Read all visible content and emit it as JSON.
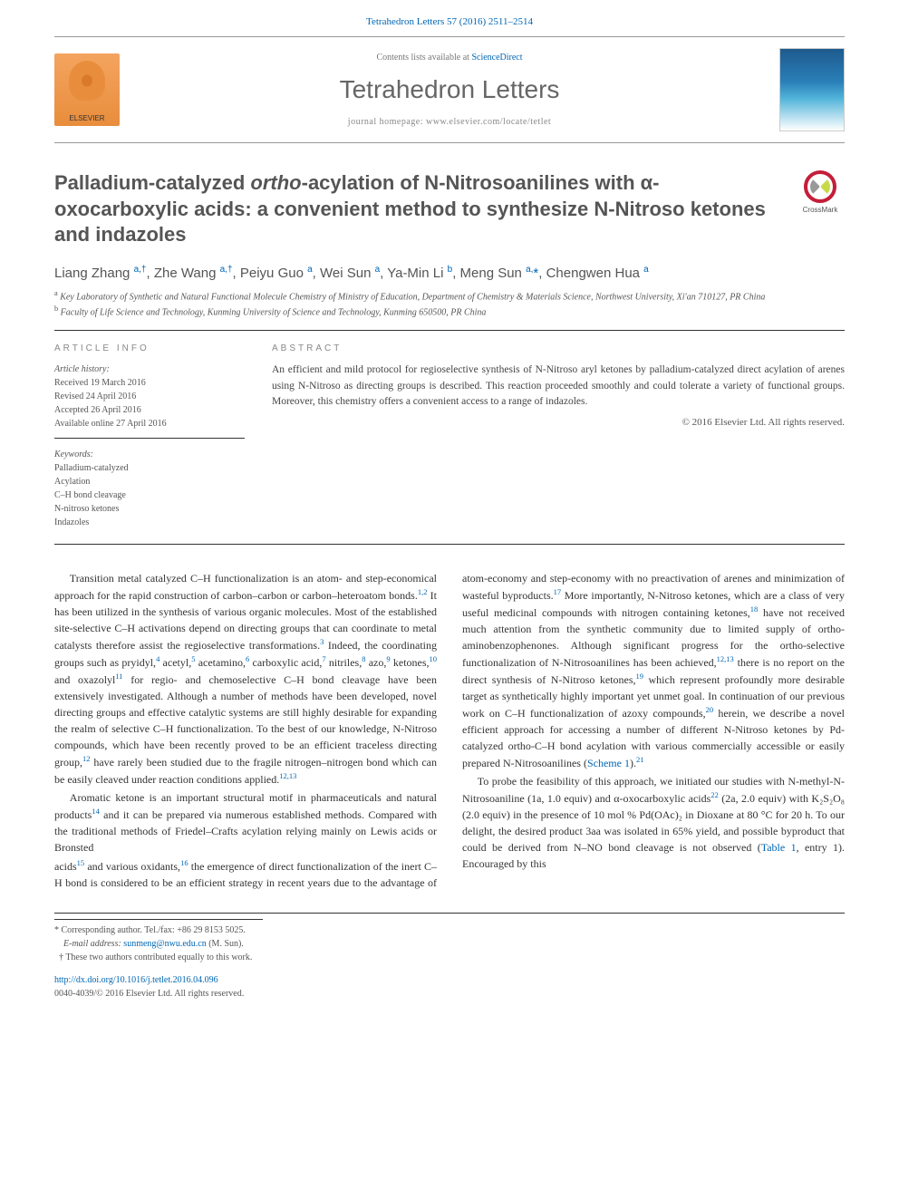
{
  "citation": "Tetrahedron Letters 57 (2016) 2511–2514",
  "masthead": {
    "elsevier": "ELSEVIER",
    "contents_prefix": "Contents lists available at ",
    "contents_link": "ScienceDirect",
    "journal": "Tetrahedron Letters",
    "homepage_prefix": "journal homepage: ",
    "homepage": "www.elsevier.com/locate/tetlet",
    "cover_label": "Tetrahedron Letters"
  },
  "crossmark": "CrossMark",
  "title": "Palladium-catalyzed ortho-acylation of N-Nitrosoanilines with α-oxocarboxylic acids: a convenient method to synthesize N-Nitroso ketones and indazoles",
  "authors_html": "Liang Zhang <sup>a,†</sup>, Zhe Wang <sup>a,†</sup>, Peiyu Guo <sup>a</sup>, Wei Sun <sup>a</sup>, Ya-Min Li <sup>b</sup>, Meng Sun <sup>a,</sup><span class='corr'>*</span>, Chengwen Hua <sup>a</sup>",
  "affiliations": {
    "a": "Key Laboratory of Synthetic and Natural Functional Molecule Chemistry of Ministry of Education, Department of Chemistry & Materials Science, Northwest University, Xi'an 710127, PR China",
    "b": "Faculty of Life Science and Technology, Kunming University of Science and Technology, Kunming 650500, PR China"
  },
  "info_head": "ARTICLE INFO",
  "abstract_head": "ABSTRACT",
  "history": {
    "label": "Article history:",
    "received": "Received 19 March 2016",
    "revised": "Revised 24 April 2016",
    "accepted": "Accepted 26 April 2016",
    "online": "Available online 27 April 2016"
  },
  "keywords": {
    "label": "Keywords:",
    "items": [
      "Palladium-catalyzed",
      "Acylation",
      "C–H bond cleavage",
      "N-nitroso ketones",
      "Indazoles"
    ]
  },
  "abstract": "An efficient and mild protocol for regioselective synthesis of N-Nitroso aryl ketones by palladium-catalyzed direct acylation of arenes using N-Nitroso as directing groups is described. This reaction proceeded smoothly and could tolerate a variety of functional groups. Moreover, this chemistry offers a convenient access to a range of indazoles.",
  "copyright": "© 2016 Elsevier Ltd. All rights reserved.",
  "body": {
    "p1": "Transition metal catalyzed C–H functionalization is an atom- and step-economical approach for the rapid construction of carbon–carbon or carbon–heteroatom bonds.<sup>1,2</sup> It has been utilized in the synthesis of various organic molecules. Most of the established site-selective C–H activations depend on directing groups that can coordinate to metal catalysts therefore assist the regioselective transformations.<sup>3</sup> Indeed, the coordinating groups such as pryidyl,<sup>4</sup> acetyl,<sup>5</sup> acetamino,<sup>6</sup> carboxylic acid,<sup>7</sup> nitriles,<sup>8</sup> azo,<sup>9</sup> ketones,<sup>10</sup> and oxazolyl<sup>11</sup> for regio- and chemoselective C–H bond cleavage have been extensively investigated. Although a number of methods have been developed, novel directing groups and effective catalytic systems are still highly desirable for expanding the realm of selective C–H functionalization. To the best of our knowledge, N-Nitroso compounds, which have been recently proved to be an efficient traceless directing group,<sup>12</sup> have rarely been studied due to the fragile nitrogen–nitrogen bond which can be easily cleaved under reaction conditions applied.<sup>12,13</sup>",
    "p2": "Aromatic ketone is an important structural motif in pharmaceuticals and natural products<sup>14</sup> and it can be prepared via numerous established methods. Compared with the traditional methods of Friedel–Crafts acylation relying mainly on Lewis acids or Bronsted",
    "p3": "acids<sup>15</sup> and various oxidants,<sup>16</sup> the emergence of direct functionalization of the inert C–H bond is considered to be an efficient strategy in recent years due to the advantage of atom-economy and step-economy with no preactivation of arenes and minimization of wasteful byproducts.<sup>17</sup> More importantly, N-Nitroso ketones, which are a class of very useful medicinal compounds with nitrogen containing ketones,<sup>18</sup> have not received much attention from the synthetic community due to limited supply of ortho-aminobenzophenones. Although significant progress for the ortho-selective functionalization of N-Nitrosoanilines has been achieved,<sup>12,13</sup> there is no report on the direct synthesis of N-Nitroso ketones,<sup>19</sup> which represent profoundly more desirable target as synthetically highly important yet unmet goal. In continuation of our previous work on C–H functionalization of azoxy compounds,<sup>20</sup> herein, we describe a novel efficient approach for accessing a number of different N-Nitroso ketones by Pd-catalyzed ortho-C–H bond acylation with various commercially accessible or easily prepared N-Nitrosoanilines (<span class='scheme-link'>Scheme 1</span>).<sup>21</sup>",
    "p4": "To probe the feasibility of this approach, we initiated our studies with N-methyl-N-Nitrosoaniline (1a, 1.0 equiv) and α-oxocarboxylic acids<sup>22</sup> (2a, 2.0 equiv) with K₂S₂O₈ (2.0 equiv) in the presence of 10 mol % Pd(OAc)₂ in Dioxane at 80 °C for 20 h. To our delight, the desired product 3aa was isolated in 65% yield, and possible byproduct that could be derived from N–NO bond cleavage is not observed (<span class='scheme-link'>Table 1</span>, entry 1). Encouraged by this"
  },
  "footer": {
    "corr": "* Corresponding author. Tel./fax: +86 29 8153 5025.",
    "email_label": "E-mail address:",
    "email": "sunmeng@nwu.edu.cn",
    "email_name": "(M. Sun).",
    "equal": "† These two authors contributed equally to this work.",
    "doi": "http://dx.doi.org/10.1016/j.tetlet.2016.04.096",
    "issn": "0040-4039/© 2016 Elsevier Ltd. All rights reserved."
  },
  "colors": {
    "link": "#0066b3",
    "heading": "#555555",
    "text": "#333333",
    "rules": "#333333"
  }
}
